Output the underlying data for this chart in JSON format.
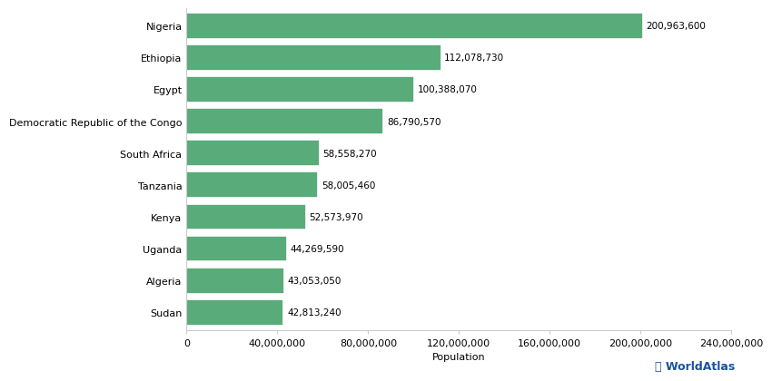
{
  "countries": [
    "Sudan",
    "Algeria",
    "Uganda",
    "Kenya",
    "Tanzania",
    "South Africa",
    "Democratic Republic of the Congo",
    "Egypt",
    "Ethiopia",
    "Nigeria"
  ],
  "populations": [
    42813240,
    43053050,
    44269590,
    52573970,
    58005460,
    58558270,
    86790570,
    100388070,
    112078730,
    200963600
  ],
  "bar_color": "#5aab7a",
  "background_color": "#ffffff",
  "xlabel": "Population",
  "xlim": [
    0,
    240000000
  ],
  "xticks": [
    0,
    40000000,
    80000000,
    120000000,
    160000000,
    200000000,
    240000000
  ],
  "value_labels": [
    "42,813,240",
    "43,053,050",
    "44,269,590",
    "52,573,970",
    "58,005,460",
    "58,558,270",
    "86,790,570",
    "100,388,070",
    "112,078,730",
    "200,963,600"
  ],
  "watermark_text": "ⓘ WorldAtlas",
  "watermark_color": "#1a52a0",
  "label_fontsize": 8.0,
  "tick_fontsize": 8.0,
  "value_fontsize": 7.5
}
